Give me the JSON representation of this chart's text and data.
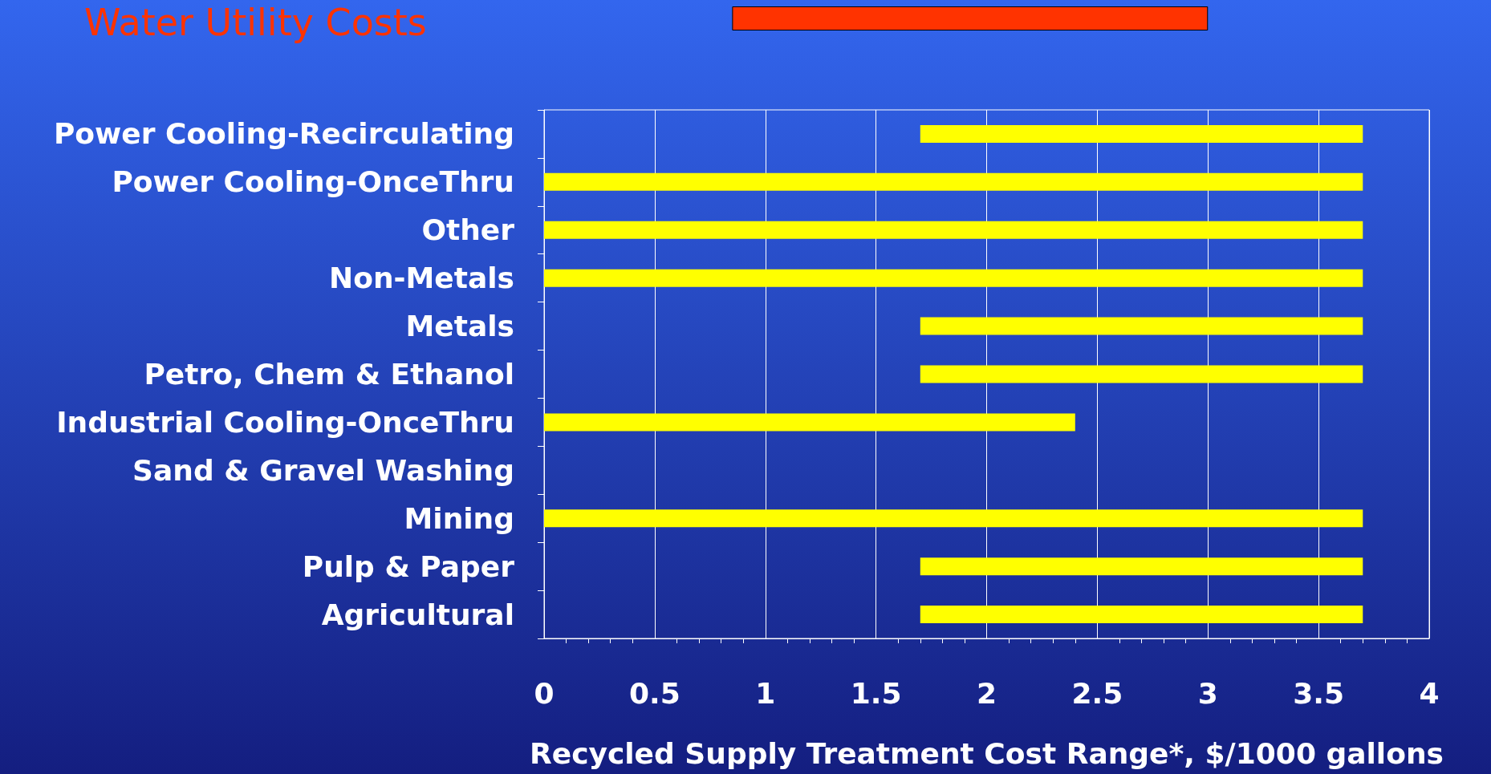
{
  "chart_data": [
    {
      "type": "bar",
      "orientation": "horizontal",
      "title": "Water Utility Costs",
      "categories": [
        null
      ],
      "base": [
        0.85
      ],
      "values": [
        2.15
      ],
      "color": "#ff3300",
      "xlim": [
        0,
        4
      ]
    },
    {
      "type": "bar",
      "orientation": "horizontal",
      "xlabel": "Recycled Supply Treatment Cost Range*, $/1000 gallons",
      "categories": [
        "Power Cooling-Recirculating",
        "Power Cooling-OnceThru",
        "Other",
        "Non-Metals",
        "Metals",
        "Petro, Chem & Ethanol",
        "Industrial Cooling-OnceThru",
        "Sand & Gravel Washing",
        "Mining",
        "Pulp & Paper",
        "Agricultural"
      ],
      "base": [
        1.7,
        0,
        0,
        0,
        1.7,
        1.7,
        0,
        null,
        0,
        1.7,
        1.7
      ],
      "values": [
        2,
        3.7,
        3.7,
        3.7,
        2,
        2,
        2.4,
        null,
        3.7,
        2,
        2
      ],
      "color": "#ffff00",
      "xlim": [
        0,
        4
      ],
      "xticks": [
        0,
        0.5,
        1,
        1.5,
        2,
        2.5,
        3,
        3.5,
        4
      ],
      "grid": "x"
    }
  ]
}
